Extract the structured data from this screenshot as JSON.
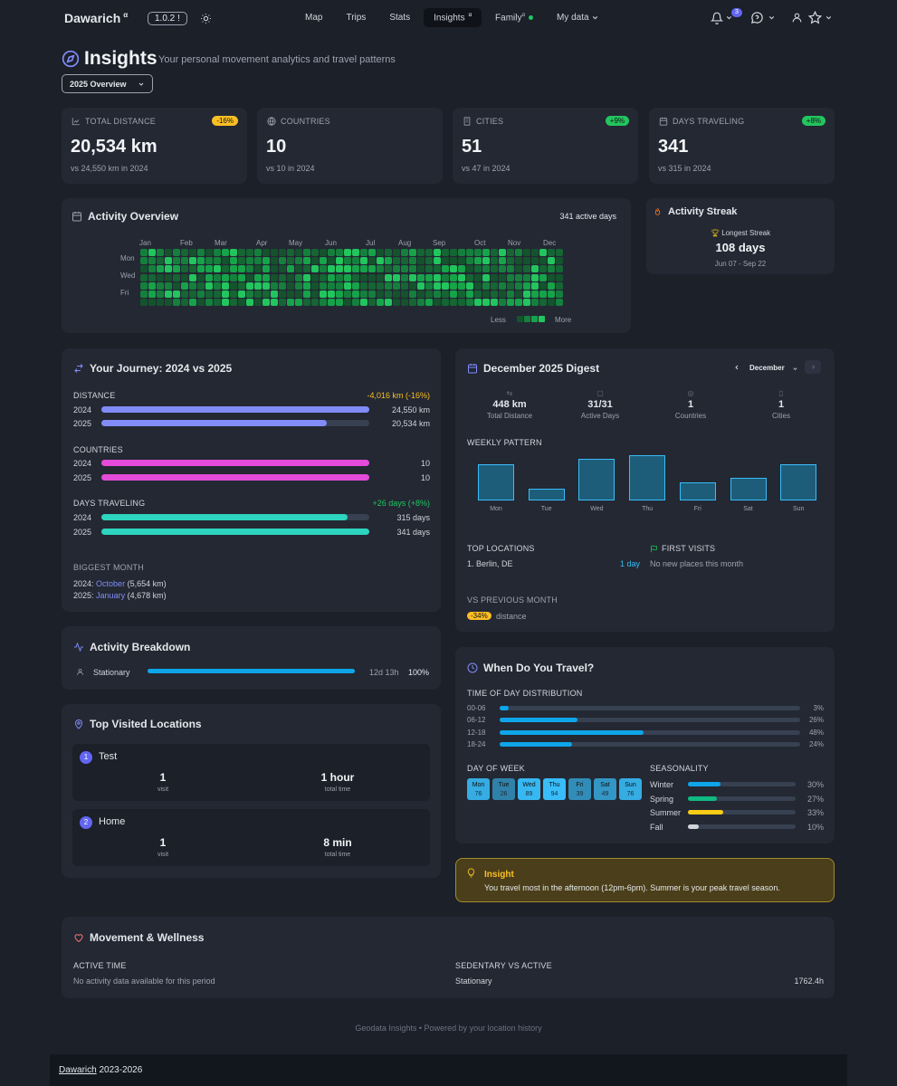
{
  "nav": {
    "brand": "Dawarich",
    "brand_sup": "α",
    "version": "1.0.2 !",
    "links": [
      "Map",
      "Trips",
      "Stats",
      "Insights",
      "Family",
      "My data"
    ],
    "insights_sup": "α",
    "family_sup": "α",
    "notif_count": "3"
  },
  "header": {
    "title": "Insights",
    "subtitle": "Your personal movement analytics and travel patterns",
    "period": "2025 Overview"
  },
  "stats": [
    {
      "label": "TOTAL DISTANCE",
      "value": "20,534 km",
      "cmp": "vs 24,550 km in 2024",
      "pill": "-16%",
      "pill_color": "#fbbf24",
      "icon": "chart-icon"
    },
    {
      "label": "COUNTRIES",
      "value": "10",
      "cmp": "vs 10 in 2024",
      "pill": "",
      "icon": "globe-icon"
    },
    {
      "label": "CITIES",
      "value": "51",
      "cmp": "vs 47 in 2024",
      "pill": "+9%",
      "pill_color": "#22c55e",
      "icon": "building-icon"
    },
    {
      "label": "DAYS TRAVELING",
      "value": "341",
      "cmp": "vs 315 in 2024",
      "pill": "+8%",
      "pill_color": "#22c55e",
      "icon": "calendar-icon"
    }
  ],
  "activity": {
    "title": "Activity Overview",
    "active_days": "341 active days",
    "months": [
      "Jan",
      "Feb",
      "Mar",
      "Apr",
      "May",
      "Jun",
      "Jul",
      "Aug",
      "Sep",
      "Oct",
      "Nov",
      "Dec"
    ],
    "days": [
      "Mon",
      "Wed",
      "Fri"
    ],
    "less": "Less",
    "more": "More"
  },
  "streak": {
    "title": "Activity Streak",
    "label": "Longest Streak",
    "value": "108 days",
    "range": "Jun 07 - Sep 22"
  },
  "journey": {
    "title": "Your Journey: 2024 vs 2025",
    "distance": {
      "label": "DISTANCE",
      "delta": "-4,016 km (-16%)",
      "y2024": "24,550 km",
      "y2025": "20,534 km",
      "f2024": 1.0,
      "f2025": 0.84
    },
    "countries": {
      "label": "COUNTRIES",
      "y2024": "10",
      "y2025": "10",
      "f2024": 1.0,
      "f2025": 1.0
    },
    "days": {
      "label": "DAYS TRAVELING",
      "delta": "+26 days (+8%)",
      "y2024": "315 days",
      "y2025": "341 days",
      "f2024": 0.92,
      "f2025": 1.0
    },
    "year_a": "2024",
    "year_b": "2025",
    "biggest_label": "BIGGEST MONTH",
    "b2024_prefix": "2024:",
    "b2024_month": "October",
    "b2024_val": "(5,654 km)",
    "b2025_prefix": "2025:",
    "b2025_month": "January",
    "b2025_val": "(4,678 km)"
  },
  "digest": {
    "title": "December 2025 Digest",
    "month_select": "December",
    "metrics": [
      {
        "value": "448 km",
        "label": "Total Distance"
      },
      {
        "value": "31/31",
        "label": "Active Days"
      },
      {
        "value": "1",
        "label": "Countries"
      },
      {
        "value": "1",
        "label": "Cities"
      }
    ],
    "weekly_label": "WEEKLY PATTERN",
    "weekdays": [
      "Mon",
      "Tue",
      "Wed",
      "Thu",
      "Fri",
      "Sat",
      "Sun"
    ],
    "weekly_values": [
      0.8,
      0.27,
      0.93,
      1.0,
      0.4,
      0.5,
      0.8
    ],
    "top_label": "TOP LOCATIONS",
    "top_item": "1. Berlin, DE",
    "top_dur": "1 day",
    "first_label": "FIRST VISITS",
    "first_text": "No new places this month",
    "vs_label": "VS PREVIOUS MONTH",
    "vs_pill": "-34%",
    "vs_text": "distance"
  },
  "breakdown": {
    "title": "Activity Breakdown",
    "item": "Stationary",
    "dur": "12d 13h",
    "pct": "100%",
    "frac": 1.0
  },
  "top_visited": {
    "title": "Top Visited Locations",
    "items": [
      {
        "num": "1",
        "name": "Test",
        "visits": "1",
        "visits_label": "visit",
        "time": "1 hour",
        "time_label": "total time"
      },
      {
        "num": "2",
        "name": "Home",
        "visits": "1",
        "visits_label": "visit",
        "time": "8 min",
        "time_label": "total time"
      }
    ]
  },
  "when": {
    "title": "When Do You Travel?",
    "tod_label": "TIME OF DAY DISTRIBUTION",
    "tod": [
      {
        "r": "00-06",
        "p": "3%",
        "f": 0.03
      },
      {
        "r": "06-12",
        "p": "26%",
        "f": 0.26
      },
      {
        "r": "12-18",
        "p": "48%",
        "f": 0.48
      },
      {
        "r": "18-24",
        "p": "24%",
        "f": 0.24
      }
    ],
    "dow_label": "DAY OF WEEK",
    "dow": [
      {
        "d": "Mon",
        "v": "76"
      },
      {
        "d": "Tue",
        "v": "26"
      },
      {
        "d": "Wed",
        "v": "89"
      },
      {
        "d": "Thu",
        "v": "94"
      },
      {
        "d": "Fri",
        "v": "39"
      },
      {
        "d": "Sat",
        "v": "49"
      },
      {
        "d": "Sun",
        "v": "76"
      }
    ],
    "season_label": "SEASONALITY",
    "seasons": [
      {
        "s": "Winter",
        "p": "30%",
        "f": 0.3,
        "c": "#0ea5e9"
      },
      {
        "s": "Spring",
        "p": "27%",
        "f": 0.27,
        "c": "#10b981"
      },
      {
        "s": "Summer",
        "p": "33%",
        "f": 0.33,
        "c": "#facc15"
      },
      {
        "s": "Fall",
        "p": "10%",
        "f": 0.1,
        "c": "#d1d5db"
      }
    ]
  },
  "insight": {
    "title": "Insight",
    "text": "You travel most in the afternoon (12pm-6pm). Summer is your peak travel season."
  },
  "wellness": {
    "title": "Movement & Wellness",
    "active_label": "ACTIVE TIME",
    "active_text": "No activity data available for this period",
    "sed_label": "SEDENTARY VS ACTIVE",
    "sed_item": "Stationary",
    "sed_val": "1762.4h"
  },
  "footer": {
    "credit": "Geodata Insights • Powered by your location history",
    "brand": "Dawarich",
    "years": "2023-2026"
  }
}
